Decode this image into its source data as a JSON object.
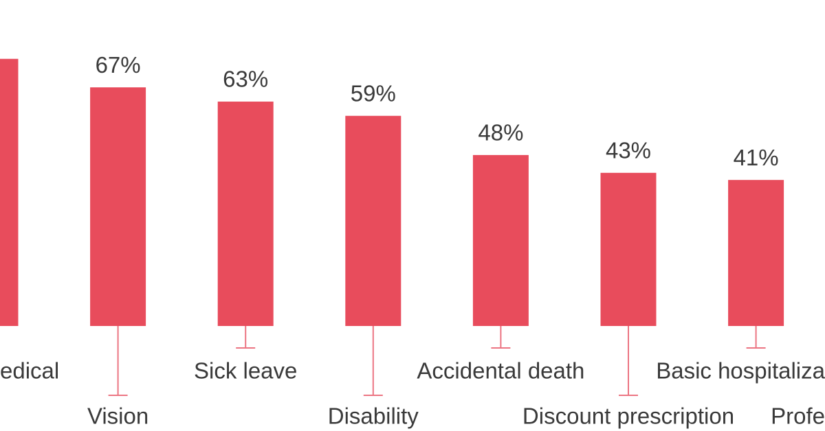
{
  "chart_data": {
    "type": "bar",
    "categories": [
      "edical",
      "Vision",
      "Sick leave",
      "Disability",
      "Accidental death",
      "Discount prescription",
      "Basic hospitaliza",
      "Profe"
    ],
    "values": [
      75,
      67,
      63,
      59,
      48,
      43,
      41,
      null
    ],
    "value_labels": [
      "%",
      "67%",
      "63%",
      "59%",
      "48%",
      "43%",
      "41%",
      null
    ],
    "color": "#e84c5c"
  }
}
